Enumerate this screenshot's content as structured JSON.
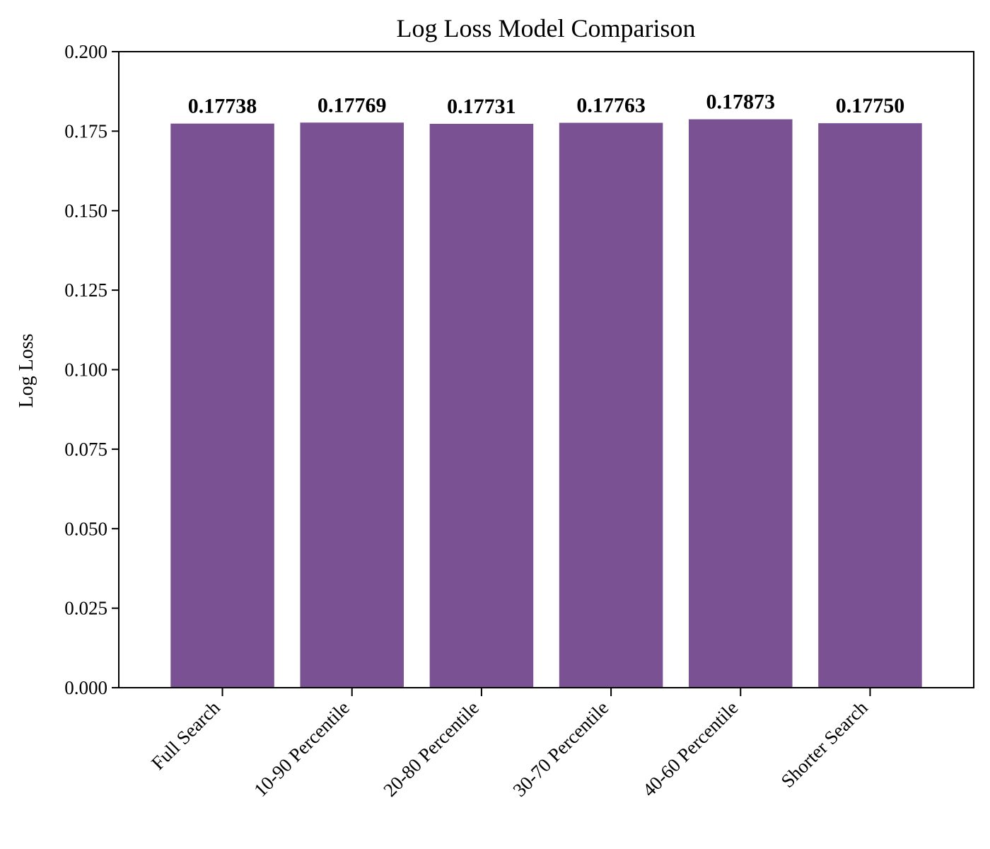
{
  "chart_data": {
    "type": "bar",
    "title": "Log Loss Model Comparison",
    "xlabel": "",
    "ylabel": "Log Loss",
    "categories": [
      "Full Search",
      "10-90 Percentile",
      "20-80 Percentile",
      "30-70 Percentile",
      "40-60 Percentile",
      "Shorter Search"
    ],
    "values": [
      0.17738,
      0.17769,
      0.17731,
      0.17763,
      0.17873,
      0.1775
    ],
    "value_labels": [
      "0.17738",
      "0.17769",
      "0.17731",
      "0.17763",
      "0.17873",
      "0.17750"
    ],
    "ylim": [
      0,
      0.2
    ],
    "yticks": [
      0.0,
      0.025,
      0.05,
      0.075,
      0.1,
      0.125,
      0.15,
      0.175,
      0.2
    ],
    "ytick_labels": [
      "0.000",
      "0.025",
      "0.050",
      "0.075",
      "0.100",
      "0.125",
      "0.150",
      "0.175",
      "0.200"
    ],
    "grid": false,
    "bar_color": "#7a5294"
  }
}
